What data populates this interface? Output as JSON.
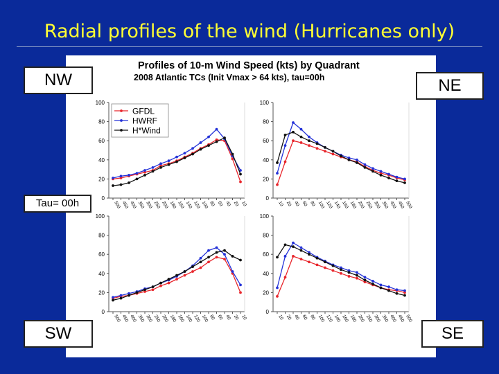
{
  "slide": {
    "title": "Radial profiles of the wind (Hurricanes only)",
    "labels": {
      "nw": "NW",
      "ne": "NE",
      "sw": "SW",
      "se": "SE",
      "tau": "Tau= 00h"
    }
  },
  "figure": {
    "title_line1": "Profiles of 10-m Wind Speed (kts) by Quadrant",
    "title_line2": "2008 Atlantic TCs (Init Vmax > 64 kts),   tau=00h"
  },
  "colors": {
    "GFDL": "#e8262c",
    "HWRF": "#2432d8",
    "H*Wind": "#111111"
  },
  "chart_data": [
    {
      "type": "line",
      "quadrant": "NW",
      "x_reversed": true,
      "ylim": [
        0,
        100
      ],
      "yticks": [
        0,
        20,
        40,
        60,
        80,
        100
      ],
      "xticks": [
        500,
        450,
        400,
        350,
        300,
        250,
        200,
        180,
        160,
        140,
        120,
        100,
        80,
        60,
        40,
        20,
        10
      ],
      "legend": {
        "entries": [
          "GFDL",
          "HWRF",
          "H*Wind"
        ],
        "placement": "top-left"
      },
      "series": [
        {
          "name": "GFDL",
          "points": [
            [
              500,
              20
            ],
            [
              450,
              21
            ],
            [
              400,
              23
            ],
            [
              350,
              25
            ],
            [
              300,
              27
            ],
            [
              250,
              29
            ],
            [
              200,
              34
            ],
            [
              180,
              36
            ],
            [
              160,
              39
            ],
            [
              140,
              43
            ],
            [
              120,
              47
            ],
            [
              100,
              52
            ],
            [
              80,
              56
            ],
            [
              60,
              61
            ],
            [
              40,
              60
            ],
            [
              20,
              41
            ],
            [
              10,
              17
            ]
          ]
        },
        {
          "name": "HWRF",
          "points": [
            [
              500,
              21
            ],
            [
              450,
              23
            ],
            [
              400,
              24
            ],
            [
              350,
              26
            ],
            [
              300,
              29
            ],
            [
              250,
              32
            ],
            [
              200,
              36
            ],
            [
              180,
              39
            ],
            [
              160,
              43
            ],
            [
              140,
              47
            ],
            [
              120,
              52
            ],
            [
              100,
              58
            ],
            [
              80,
              64
            ],
            [
              60,
              72
            ],
            [
              40,
              62
            ],
            [
              20,
              44
            ],
            [
              10,
              29
            ]
          ]
        },
        {
          "name": "H*Wind",
          "points": [
            [
              500,
              13
            ],
            [
              450,
              14
            ],
            [
              400,
              16
            ],
            [
              350,
              20
            ],
            [
              300,
              24
            ],
            [
              250,
              28
            ],
            [
              200,
              32
            ],
            [
              180,
              35
            ],
            [
              160,
              38
            ],
            [
              140,
              42
            ],
            [
              120,
              46
            ],
            [
              100,
              51
            ],
            [
              80,
              55
            ],
            [
              60,
              59
            ],
            [
              40,
              63
            ],
            [
              20,
              46
            ],
            [
              10,
              25
            ]
          ]
        }
      ]
    },
    {
      "type": "line",
      "quadrant": "NE",
      "x_reversed": false,
      "ylim": [
        0,
        100
      ],
      "yticks": [
        0,
        20,
        40,
        60,
        80,
        100
      ],
      "xticks": [
        10,
        20,
        40,
        60,
        80,
        100,
        120,
        140,
        160,
        180,
        200,
        250,
        300,
        350,
        400,
        450,
        500
      ],
      "series": [
        {
          "name": "GFDL",
          "points": [
            [
              10,
              14
            ],
            [
              20,
              38
            ],
            [
              40,
              60
            ],
            [
              60,
              58
            ],
            [
              80,
              55
            ],
            [
              100,
              52
            ],
            [
              120,
              49
            ],
            [
              140,
              46
            ],
            [
              160,
              43
            ],
            [
              180,
              40
            ],
            [
              200,
              38
            ],
            [
              250,
              33
            ],
            [
              300,
              29
            ],
            [
              350,
              26
            ],
            [
              400,
              24
            ],
            [
              450,
              21
            ],
            [
              500,
              19
            ]
          ]
        },
        {
          "name": "HWRF",
          "points": [
            [
              10,
              26
            ],
            [
              20,
              55
            ],
            [
              40,
              79
            ],
            [
              60,
              72
            ],
            [
              80,
              64
            ],
            [
              100,
              58
            ],
            [
              120,
              53
            ],
            [
              140,
              49
            ],
            [
              160,
              45
            ],
            [
              180,
              42
            ],
            [
              200,
              40
            ],
            [
              250,
              35
            ],
            [
              300,
              31
            ],
            [
              350,
              28
            ],
            [
              400,
              25
            ],
            [
              450,
              22
            ],
            [
              500,
              20
            ]
          ]
        },
        {
          "name": "H*Wind",
          "points": [
            [
              10,
              37
            ],
            [
              20,
              66
            ],
            [
              40,
              69
            ],
            [
              60,
              64
            ],
            [
              80,
              60
            ],
            [
              100,
              57
            ],
            [
              120,
              53
            ],
            [
              140,
              49
            ],
            [
              160,
              44
            ],
            [
              180,
              40
            ],
            [
              200,
              37
            ],
            [
              250,
              32
            ],
            [
              300,
              28
            ],
            [
              350,
              24
            ],
            [
              400,
              21
            ],
            [
              450,
              18
            ],
            [
              500,
              16
            ]
          ]
        }
      ]
    },
    {
      "type": "line",
      "quadrant": "SW",
      "x_reversed": true,
      "ylim": [
        0,
        100
      ],
      "yticks": [
        0,
        20,
        40,
        60,
        80,
        100
      ],
      "xticks": [
        500,
        450,
        400,
        350,
        300,
        250,
        200,
        180,
        160,
        140,
        120,
        100,
        80,
        60,
        40,
        20,
        10
      ],
      "series": [
        {
          "name": "GFDL",
          "points": [
            [
              500,
              14
            ],
            [
              450,
              16
            ],
            [
              400,
              17
            ],
            [
              350,
              19
            ],
            [
              300,
              21
            ],
            [
              250,
              23
            ],
            [
              200,
              27
            ],
            [
              180,
              30
            ],
            [
              160,
              34
            ],
            [
              140,
              38
            ],
            [
              120,
              42
            ],
            [
              100,
              46
            ],
            [
              80,
              52
            ],
            [
              60,
              57
            ],
            [
              40,
              55
            ],
            [
              20,
              40
            ],
            [
              10,
              20
            ]
          ]
        },
        {
          "name": "HWRF",
          "points": [
            [
              500,
              15
            ],
            [
              450,
              17
            ],
            [
              400,
              19
            ],
            [
              350,
              21
            ],
            [
              300,
              24
            ],
            [
              250,
              26
            ],
            [
              200,
              30
            ],
            [
              180,
              33
            ],
            [
              160,
              37
            ],
            [
              140,
              42
            ],
            [
              120,
              48
            ],
            [
              100,
              56
            ],
            [
              80,
              64
            ],
            [
              60,
              67
            ],
            [
              40,
              60
            ],
            [
              20,
              42
            ],
            [
              10,
              28
            ]
          ]
        },
        {
          "name": "H*Wind",
          "points": [
            [
              500,
              12
            ],
            [
              450,
              14
            ],
            [
              400,
              17
            ],
            [
              350,
              20
            ],
            [
              300,
              23
            ],
            [
              250,
              26
            ],
            [
              200,
              30
            ],
            [
              180,
              34
            ],
            [
              160,
              38
            ],
            [
              140,
              42
            ],
            [
              120,
              47
            ],
            [
              100,
              52
            ],
            [
              80,
              57
            ],
            [
              60,
              62
            ],
            [
              40,
              64
            ],
            [
              20,
              58
            ],
            [
              10,
              54
            ]
          ]
        }
      ]
    },
    {
      "type": "line",
      "quadrant": "SE",
      "x_reversed": false,
      "ylim": [
        0,
        100
      ],
      "yticks": [
        0,
        20,
        40,
        60,
        80,
        100
      ],
      "xticks": [
        10,
        20,
        40,
        60,
        80,
        100,
        120,
        140,
        160,
        180,
        200,
        250,
        300,
        350,
        400,
        450,
        500
      ],
      "series": [
        {
          "name": "GFDL",
          "points": [
            [
              10,
              16
            ],
            [
              20,
              36
            ],
            [
              40,
              58
            ],
            [
              60,
              55
            ],
            [
              80,
              52
            ],
            [
              100,
              49
            ],
            [
              120,
              46
            ],
            [
              140,
              43
            ],
            [
              160,
              40
            ],
            [
              180,
              37
            ],
            [
              200,
              35
            ],
            [
              250,
              31
            ],
            [
              300,
              28
            ],
            [
              350,
              25
            ],
            [
              400,
              23
            ],
            [
              450,
              22
            ],
            [
              500,
              20
            ]
          ]
        },
        {
          "name": "HWRF",
          "points": [
            [
              10,
              25
            ],
            [
              20,
              58
            ],
            [
              40,
              72
            ],
            [
              60,
              67
            ],
            [
              80,
              62
            ],
            [
              100,
              57
            ],
            [
              120,
              53
            ],
            [
              140,
              49
            ],
            [
              160,
              46
            ],
            [
              180,
              43
            ],
            [
              200,
              41
            ],
            [
              250,
              36
            ],
            [
              300,
              32
            ],
            [
              350,
              28
            ],
            [
              400,
              26
            ],
            [
              450,
              23
            ],
            [
              500,
              22
            ]
          ]
        },
        {
          "name": "H*Wind",
          "points": [
            [
              10,
              57
            ],
            [
              20,
              70
            ],
            [
              40,
              68
            ],
            [
              60,
              64
            ],
            [
              80,
              60
            ],
            [
              100,
              56
            ],
            [
              120,
              52
            ],
            [
              140,
              48
            ],
            [
              160,
              44
            ],
            [
              180,
              41
            ],
            [
              200,
              38
            ],
            [
              250,
              33
            ],
            [
              300,
              29
            ],
            [
              350,
              25
            ],
            [
              400,
              22
            ],
            [
              450,
              19
            ],
            [
              500,
              17
            ]
          ]
        }
      ]
    }
  ]
}
